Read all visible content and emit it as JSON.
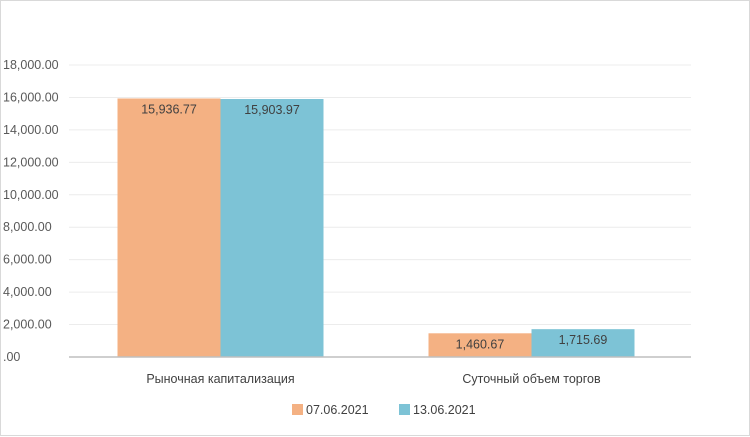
{
  "chart_data": {
    "type": "bar",
    "categories": [
      "Рыночная капитализация",
      "Суточный объем торгов"
    ],
    "series": [
      {
        "name": "07.06.2021",
        "values": [
          15936.77,
          1460.67
        ],
        "labels": [
          "15,936.77",
          "1,460.67"
        ],
        "color": "#F4B183"
      },
      {
        "name": "13.06.2021",
        "values": [
          15903.97,
          1715.69
        ],
        "labels": [
          "15,903.97",
          "1,715.69"
        ],
        "color": "#7DC3D6"
      }
    ],
    "ylim": [
      0,
      18000
    ],
    "yticks": [
      0,
      2000,
      4000,
      6000,
      8000,
      10000,
      12000,
      14000,
      16000,
      18000
    ],
    "ytick_labels": [
      ".00",
      "2,000.00",
      "4,000.00",
      "6,000.00",
      "8,000.00",
      "10,000.00",
      "12,000.00",
      "14,000.00",
      "16,000.00",
      "18,000.00"
    ],
    "title": "",
    "xlabel": "",
    "ylabel": "",
    "grid": true,
    "legend": "bottom"
  }
}
